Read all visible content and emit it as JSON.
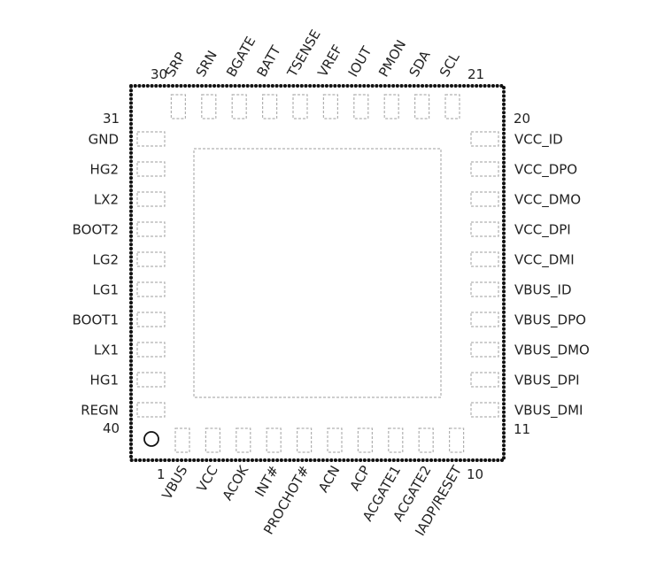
{
  "pins": {
    "bottom": [
      "VBUS",
      "VCC",
      "ACOK",
      "INT#",
      "PROCHOT#",
      "ACN",
      "ACP",
      "ACGATE1",
      "ACGATE2",
      "IADP/RESET"
    ],
    "right": [
      "VBUS_DMI",
      "VBUS_DPI",
      "VBUS_DMO",
      "VBUS_DPO",
      "VBUS_ID",
      "VCC_DMI",
      "VCC_DPI",
      "VCC_DMO",
      "VCC_DPO",
      "VCC_ID"
    ],
    "top": [
      "SCL",
      "SDA",
      "PMON",
      "IOUT",
      "VREF",
      "TSENSE",
      "BATT",
      "BGATE",
      "SRN",
      "SRP"
    ],
    "left": [
      "GND",
      "HG2",
      "LX2",
      "BOOT2",
      "LG2",
      "LG1",
      "BOOT1",
      "LX1",
      "HG1",
      "REGN"
    ]
  },
  "pin_numbers": {
    "p1": "1",
    "p10": "10",
    "p11": "11",
    "p20": "20",
    "p21": "21",
    "p30": "30",
    "p31": "31",
    "p40": "40"
  },
  "colors": {
    "outline": "#111111",
    "pad": "#b0b0b0",
    "text": "#222222"
  }
}
